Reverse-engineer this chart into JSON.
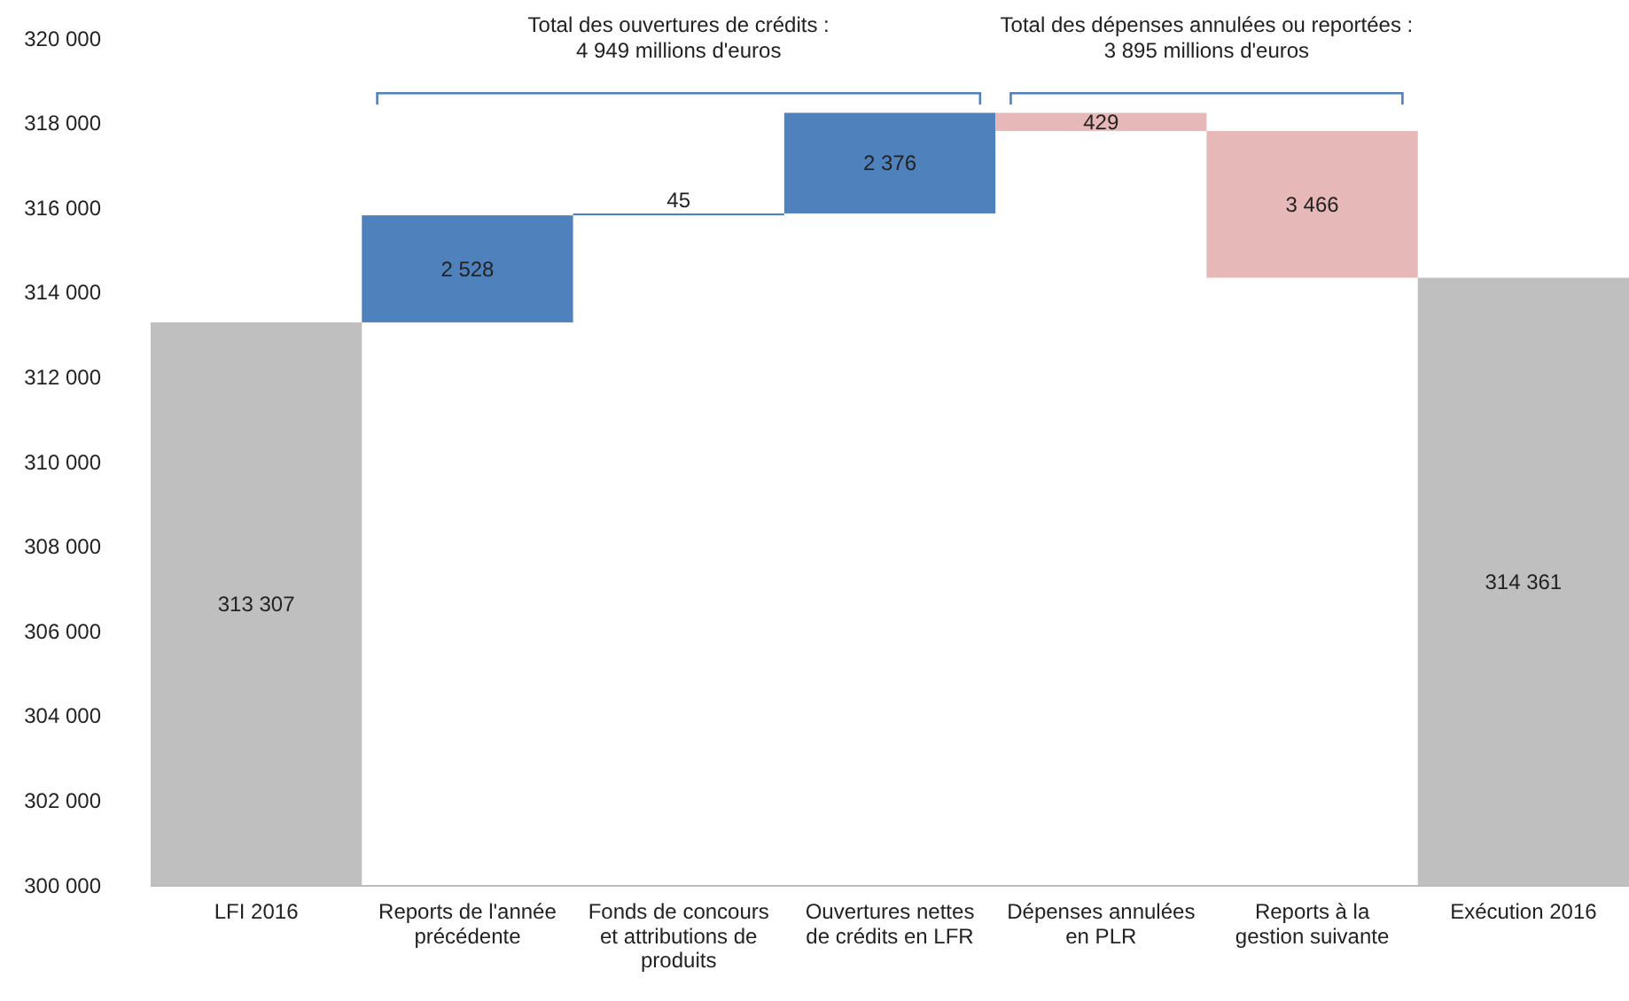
{
  "chart_data": {
    "type": "bar",
    "categories": [
      "LFI 2016",
      "Reports de l'année précédente",
      "Fonds de concours et attributions de produits",
      "Ouvertures nettes de crédits en LFR",
      "Dépenses annulées en PLR",
      "Reports à la gestion suivante",
      "Exécution 2016"
    ],
    "values": [
      13307,
      2528,
      45,
      2376,
      429,
      3466,
      14361
    ],
    "base": [
      300000,
      313307,
      315835,
      315880,
      317827,
      314361,
      300000
    ],
    "colors": [
      "#bfbfbf",
      "#4f81bd",
      "#4f81bd",
      "#4f81bd",
      "#e6b9b8",
      "#e6b9b8",
      "#bfbfbf"
    ],
    "value_labels": [
      "313 307",
      "2 528",
      "45",
      "2 376",
      "429",
      "3 466",
      "314 361"
    ],
    "ylim": [
      300000,
      320000
    ],
    "yticks": [
      {
        "value": 300000,
        "label": "300 000"
      },
      {
        "value": 302000,
        "label": "302 000"
      },
      {
        "value": 304000,
        "label": "304 000"
      },
      {
        "value": 306000,
        "label": "306 000"
      },
      {
        "value": 308000,
        "label": "308 000"
      },
      {
        "value": 310000,
        "label": "310 000"
      },
      {
        "value": 312000,
        "label": "312 000"
      },
      {
        "value": 314000,
        "label": "314 000"
      },
      {
        "value": 316000,
        "label": "316 000"
      },
      {
        "value": 318000,
        "label": "318 000"
      },
      {
        "value": 320000,
        "label": "320 000"
      }
    ],
    "annotations": [
      "Total des ouvertures de crédits :\n4 949 millions d'euros",
      "Total des dépenses annulées ou reportées :\n3 895 millions d'euros"
    ],
    "grid": false
  }
}
